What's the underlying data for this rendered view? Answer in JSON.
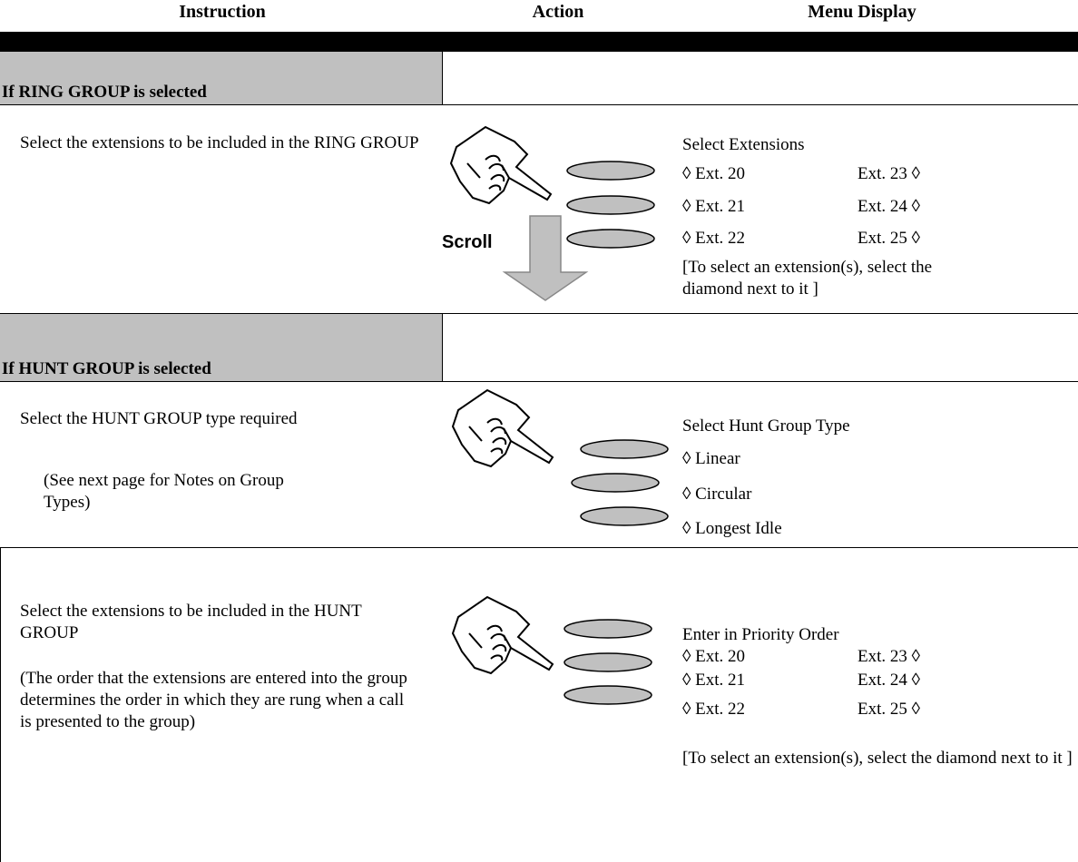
{
  "header": {
    "columns": [
      "Instruction",
      "Action",
      "Menu Display"
    ]
  },
  "sections": [
    {
      "title": "If RING GROUP is selected",
      "rows": [
        {
          "instruction": [
            "Select the extensions to be included in the RING GROUP"
          ],
          "action_label": "Scroll",
          "menu": {
            "title": "Select Extensions",
            "items": [
              [
                "◊ Ext. 20",
                "Ext. 23 ◊"
              ],
              [
                "◊ Ext. 21",
                "Ext. 24 ◊"
              ],
              [
                "◊ Ext. 22",
                "Ext. 25 ◊"
              ]
            ],
            "note": "[To select an extension(s), select the diamond next to it ]"
          }
        }
      ]
    },
    {
      "title": "If HUNT GROUP is selected",
      "rows": [
        {
          "instruction": [
            "Select the HUNT GROUP type required",
            "(See next page for Notes on Group Types)"
          ],
          "menu": {
            "title": "Select Hunt Group Type",
            "items": [
              [
                "◊ Linear"
              ],
              [
                "◊ Circular"
              ],
              [
                "◊ Longest Idle"
              ]
            ]
          }
        },
        {
          "instruction": [
            "Select the extensions to be included in the HUNT GROUP",
            "(The order that the extensions are entered into the group determines the order in which they are rung when a call is presented to the group)"
          ],
          "menu": {
            "title": "Enter in Priority Order",
            "items": [
              [
                "◊ Ext. 20",
                "Ext. 23 ◊"
              ],
              [
                "◊ Ext. 21",
                "Ext. 24 ◊"
              ],
              [
                "◊ Ext. 22",
                "Ext. 25 ◊"
              ]
            ],
            "note": "[To select an extension(s), select the diamond next to it ]"
          }
        }
      ]
    }
  ]
}
